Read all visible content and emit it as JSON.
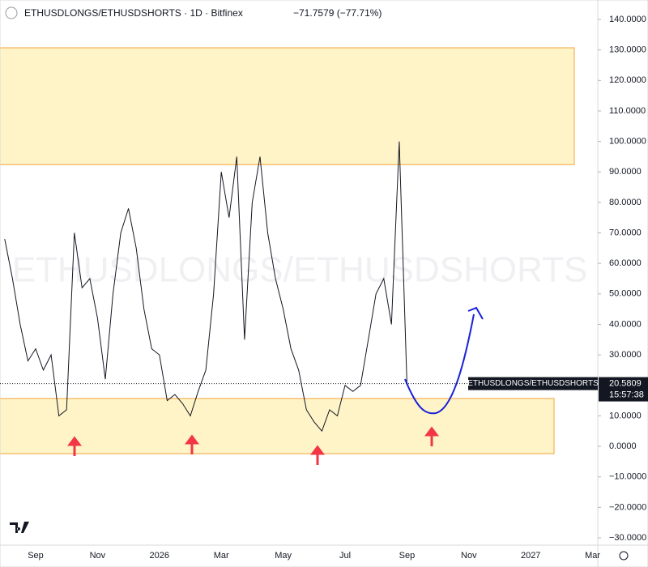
{
  "chart_data": {
    "type": "line",
    "title": "ETHUSDLONGS/ETHUSDSHORTS · 1D · Bitfinex",
    "change": "−71.7579 (−77.71%)",
    "watermark": "ETHUSDLONGS/ETHUSDSHORTS",
    "price_label": {
      "name": "ETHUSDLONGS/ETHUSDSHORTS",
      "value": 20.5809,
      "label": "20.5809",
      "countdown": "15:57:38"
    },
    "categories": [
      null,
      null,
      null,
      null,
      "Sep",
      null,
      null,
      null,
      null,
      null,
      null,
      null,
      "Nov",
      null,
      null,
      null,
      null,
      null,
      null,
      null,
      "2026",
      null,
      null,
      null,
      null,
      null,
      null,
      null,
      "Mar",
      null,
      null,
      null,
      null,
      null,
      null,
      null,
      "May",
      null,
      null,
      null,
      null,
      null,
      null,
      null,
      "Jul",
      null,
      null,
      null,
      null,
      null,
      null,
      null,
      "Sep",
      null,
      null,
      null,
      null,
      null,
      null,
      null,
      "Nov",
      null,
      null,
      null,
      null,
      null,
      null,
      null,
      "2027",
      null,
      null,
      null,
      null,
      null,
      null,
      null,
      "Mar",
      null,
      null,
      null
    ],
    "series": [
      {
        "name": "ETHUSDLONGS/ETHUSDSHORTS",
        "color": "#131722",
        "values": [
          68,
          55,
          40,
          28,
          32,
          25,
          30,
          10,
          12,
          70,
          52,
          55,
          42,
          22,
          50,
          70,
          78,
          65,
          45,
          32,
          30,
          15,
          17,
          14,
          10,
          18,
          25,
          50,
          90,
          75,
          95,
          35,
          80,
          95,
          70,
          55,
          45,
          32,
          25,
          12,
          8,
          5,
          12,
          10,
          20,
          18,
          20,
          35,
          50,
          55,
          40,
          100,
          20.5809,
          null,
          null,
          null,
          null,
          null,
          null,
          null,
          null,
          null,
          null,
          null,
          null,
          null,
          null,
          null,
          null,
          null,
          null,
          null,
          null,
          null,
          null,
          null,
          null,
          null,
          null,
          null
        ]
      }
    ],
    "zones": [
      {
        "top": 130.7,
        "bottom": 92.4
      },
      {
        "top": 15.7,
        "bottom": -2.4
      }
    ],
    "ylim": [
      -30,
      140
    ],
    "yticks": [
      {
        "value": 140,
        "label": "140.0000"
      },
      {
        "value": 130,
        "label": "130.0000"
      },
      {
        "value": 120,
        "label": "120.0000"
      },
      {
        "value": 110,
        "label": "110.0000"
      },
      {
        "value": 100,
        "label": "100.0000"
      },
      {
        "value": 90,
        "label": "90.0000"
      },
      {
        "value": 80,
        "label": "80.0000"
      },
      {
        "value": 70,
        "label": "70.0000"
      },
      {
        "value": 60,
        "label": "60.0000"
      },
      {
        "value": 50,
        "label": "50.0000"
      },
      {
        "value": 40,
        "label": "40.0000"
      },
      {
        "value": 30,
        "label": "30.0000"
      },
      {
        "value": 20,
        "label": "20.0000"
      },
      {
        "value": 10,
        "label": "10.0000"
      },
      {
        "value": 0,
        "label": "0.0000"
      },
      {
        "value": -10,
        "label": "−10.0000"
      },
      {
        "value": -20,
        "label": "−20.0000"
      },
      {
        "value": -30,
        "label": "−30.0000"
      }
    ]
  }
}
